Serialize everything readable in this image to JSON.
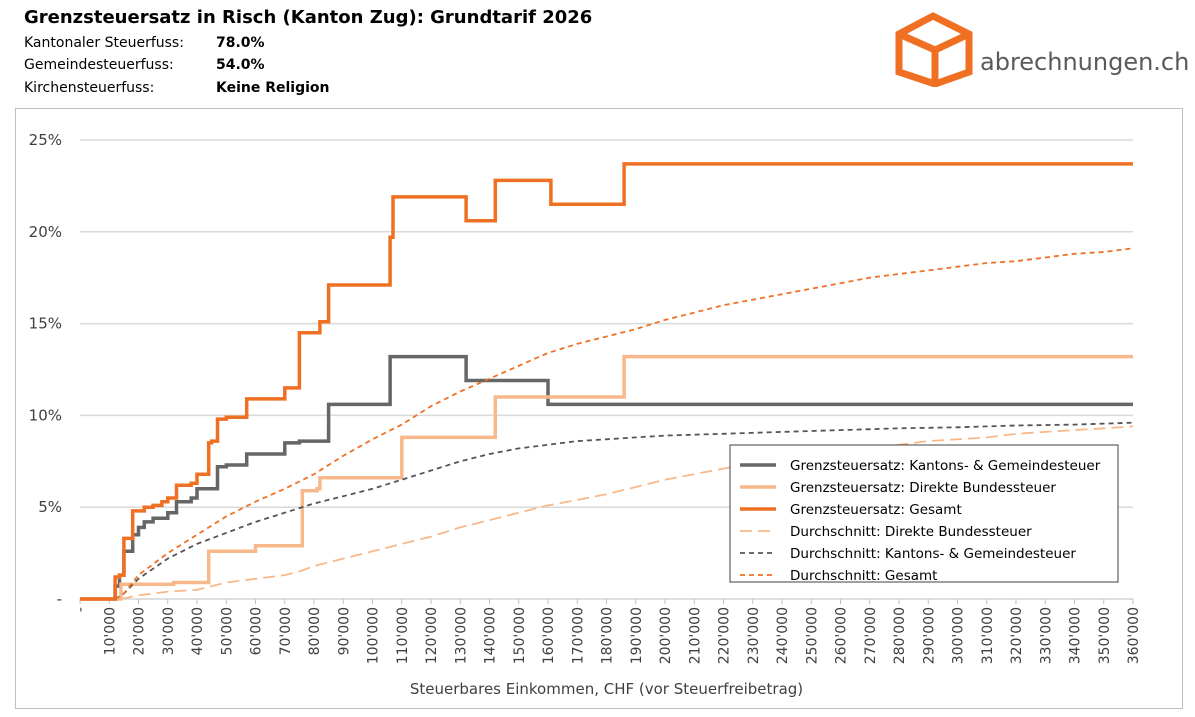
{
  "header": {
    "title": "Grenzsteuersatz in Risch (Kanton Zug): Grundtarif 2026",
    "info": [
      {
        "label": "Kantonaler Steuerfuss:",
        "value": "78.0%"
      },
      {
        "label": "Gemeindesteuerfuss:",
        "value": "54.0%"
      },
      {
        "label": "Kirchensteuerfuss:",
        "value": "Keine Religion"
      }
    ],
    "logo_text": "abrechnungen.ch",
    "logo_color": "#F07023"
  },
  "chart_data": {
    "type": "line",
    "xlabel": "Steuerbares Einkommen, CHF (vor Steuerfreibetrag)",
    "ylabel": "",
    "xlim": [
      0,
      360000
    ],
    "ylim": [
      0,
      25
    ],
    "x_ticks": [
      0,
      10000,
      20000,
      30000,
      40000,
      50000,
      60000,
      70000,
      80000,
      90000,
      100000,
      110000,
      120000,
      130000,
      140000,
      150000,
      160000,
      170000,
      180000,
      190000,
      200000,
      210000,
      220000,
      230000,
      240000,
      250000,
      260000,
      270000,
      280000,
      290000,
      300000,
      310000,
      320000,
      330000,
      340000,
      350000,
      360000
    ],
    "x_tick_labels": [
      "-",
      "10'000",
      "20'000",
      "30'000",
      "40'000",
      "50'000",
      "60'000",
      "70'000",
      "80'000",
      "90'000",
      "100'000",
      "110'000",
      "120'000",
      "130'000",
      "140'000",
      "150'000",
      "160'000",
      "170'000",
      "180'000",
      "190'000",
      "200'000",
      "210'000",
      "220'000",
      "230'000",
      "240'000",
      "250'000",
      "260'000",
      "270'000",
      "280'000",
      "290'000",
      "300'000",
      "310'000",
      "320'000",
      "330'000",
      "340'000",
      "350'000",
      "360'000"
    ],
    "y_ticks": [
      0,
      5,
      10,
      15,
      20,
      25
    ],
    "y_tick_labels": [
      "-",
      "5%",
      "10%",
      "15%",
      "20%",
      "25%"
    ],
    "grid": true,
    "legend_position": "bottom-right",
    "series": [
      {
        "name": "Grenzsteuersatz: Kantons- & Gemeindesteuer",
        "color": "#666666",
        "style": "solid",
        "width": 3.5,
        "step": true,
        "x": [
          0,
          12000,
          13500,
          15000,
          16500,
          18000,
          20000,
          22000,
          25000,
          28000,
          30000,
          33000,
          35000,
          38000,
          40000,
          44000,
          45000,
          47000,
          50000,
          55000,
          57000,
          60000,
          65000,
          70000,
          72000,
          75000,
          80000,
          85000,
          87000,
          100000,
          106000,
          110000,
          130000,
          132000,
          140000,
          150000,
          160000,
          161000,
          360000
        ],
        "y": [
          0,
          0.7,
          1.3,
          2.6,
          2.6,
          3.5,
          3.9,
          4.2,
          4.4,
          4.4,
          4.7,
          5.3,
          5.3,
          5.5,
          6.0,
          6.0,
          6.0,
          7.2,
          7.3,
          7.3,
          7.9,
          7.9,
          7.9,
          8.5,
          8.5,
          8.6,
          8.6,
          10.6,
          10.6,
          10.6,
          13.2,
          13.2,
          13.2,
          11.9,
          11.9,
          11.9,
          10.6,
          10.6,
          10.6
        ]
      },
      {
        "name": "Grenzsteuersatz: Direkte Bundessteuer",
        "color": "#F7B98B",
        "style": "solid",
        "width": 3.5,
        "step": true,
        "x": [
          0,
          14000,
          20000,
          30000,
          32000,
          43000,
          44000,
          57000,
          60000,
          75000,
          76000,
          81000,
          82000,
          107000,
          110000,
          131000,
          141000,
          142000,
          160000,
          185000,
          186000,
          360000
        ],
        "y": [
          0,
          0.8,
          0.8,
          0.8,
          0.9,
          0.9,
          2.6,
          2.6,
          2.9,
          2.9,
          5.9,
          6.0,
          6.6,
          6.6,
          8.8,
          8.8,
          8.8,
          11.0,
          11.0,
          11.0,
          13.2,
          13.2
        ]
      },
      {
        "name": "Grenzsteuersatz: Gesamt",
        "color": "#F07023",
        "style": "solid",
        "width": 3.5,
        "step": true,
        "x": [
          0,
          12000,
          13500,
          15000,
          16500,
          18000,
          20000,
          22000,
          25000,
          28000,
          30000,
          33000,
          35000,
          38000,
          40000,
          44000,
          45000,
          47000,
          50000,
          55000,
          57000,
          60000,
          65000,
          70000,
          72000,
          75000,
          80000,
          82000,
          85000,
          100000,
          106000,
          107000,
          110000,
          131000,
          132000,
          140000,
          142000,
          150000,
          160000,
          161000,
          185000,
          186000,
          360000
        ],
        "y": [
          0,
          1.2,
          1.3,
          3.3,
          3.3,
          4.8,
          4.8,
          5.0,
          5.1,
          5.3,
          5.5,
          6.2,
          6.2,
          6.3,
          6.8,
          8.5,
          8.6,
          9.8,
          9.9,
          9.9,
          10.9,
          10.9,
          10.9,
          11.5,
          11.5,
          14.5,
          14.5,
          15.1,
          17.1,
          17.1,
          19.7,
          21.9,
          21.9,
          21.9,
          20.6,
          20.6,
          22.8,
          22.8,
          22.8,
          21.5,
          21.5,
          23.7,
          23.7
        ]
      },
      {
        "name": "Durchschnitt: Direkte Bundessteuer",
        "color": "#F7B98B",
        "style": "dashed-long",
        "width": 1.8,
        "step": false,
        "x": [
          14000,
          20000,
          30000,
          40000,
          45000,
          50000,
          60000,
          70000,
          75000,
          80000,
          90000,
          100000,
          110000,
          120000,
          130000,
          140000,
          150000,
          160000,
          170000,
          180000,
          190000,
          200000,
          210000,
          220000,
          230000,
          240000,
          250000,
          260000,
          270000,
          280000,
          290000,
          300000,
          310000,
          320000,
          330000,
          340000,
          350000,
          360000
        ],
        "y": [
          0,
          0.2,
          0.4,
          0.5,
          0.7,
          0.9,
          1.1,
          1.3,
          1.5,
          1.8,
          2.2,
          2.6,
          3.0,
          3.4,
          3.9,
          4.3,
          4.7,
          5.1,
          5.4,
          5.7,
          6.1,
          6.5,
          6.8,
          7.1,
          7.4,
          7.6,
          7.8,
          8.0,
          8.2,
          8.4,
          8.6,
          8.7,
          8.8,
          9.0,
          9.1,
          9.2,
          9.3,
          9.4
        ]
      },
      {
        "name": "Durchschnitt: Kantons- & Gemeindesteuer",
        "color": "#555555",
        "style": "dashed",
        "width": 1.8,
        "step": false,
        "x": [
          12000,
          15000,
          20000,
          30000,
          40000,
          50000,
          60000,
          70000,
          80000,
          90000,
          100000,
          110000,
          120000,
          130000,
          140000,
          150000,
          160000,
          170000,
          180000,
          190000,
          200000,
          220000,
          240000,
          260000,
          280000,
          300000,
          320000,
          340000,
          360000
        ],
        "y": [
          0,
          0.3,
          1.1,
          2.2,
          3.0,
          3.6,
          4.2,
          4.7,
          5.2,
          5.6,
          6.0,
          6.5,
          7.0,
          7.5,
          7.9,
          8.2,
          8.4,
          8.6,
          8.7,
          8.8,
          8.9,
          9.0,
          9.1,
          9.2,
          9.3,
          9.35,
          9.45,
          9.5,
          9.6
        ]
      },
      {
        "name": "Durchschnitt: Gesamt",
        "color": "#F07023",
        "style": "dashed",
        "width": 1.8,
        "step": false,
        "x": [
          12000,
          15000,
          20000,
          30000,
          40000,
          50000,
          60000,
          70000,
          80000,
          90000,
          100000,
          110000,
          120000,
          130000,
          140000,
          150000,
          160000,
          170000,
          180000,
          190000,
          200000,
          210000,
          220000,
          230000,
          240000,
          250000,
          260000,
          270000,
          280000,
          290000,
          300000,
          310000,
          320000,
          330000,
          340000,
          350000,
          360000
        ],
        "y": [
          0,
          0.3,
          1.3,
          2.5,
          3.5,
          4.5,
          5.3,
          6.0,
          6.8,
          7.8,
          8.7,
          9.5,
          10.5,
          11.3,
          12.0,
          12.7,
          13.4,
          13.9,
          14.3,
          14.7,
          15.2,
          15.6,
          16.0,
          16.3,
          16.6,
          16.9,
          17.2,
          17.5,
          17.7,
          17.9,
          18.1,
          18.3,
          18.4,
          18.6,
          18.8,
          18.9,
          19.1
        ]
      }
    ]
  }
}
